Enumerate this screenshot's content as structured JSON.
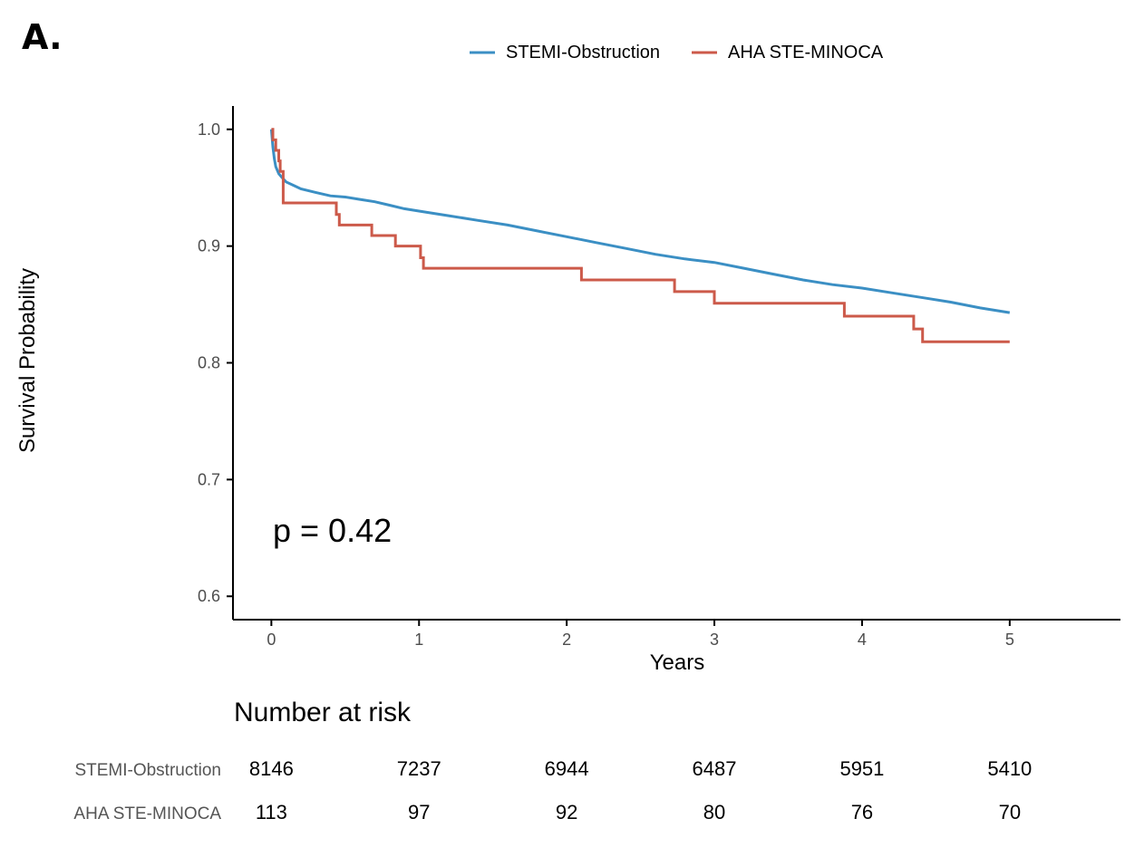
{
  "panel_label": "A.",
  "colors": {
    "series1": "#3b8fc4",
    "series2": "#cc5a4a",
    "axis": "#000000"
  },
  "chart_data": {
    "type": "line",
    "subtype": "kaplan-meier step",
    "xlabel": "Years",
    "ylabel": "Survival Probability",
    "xlim": [
      -0.26,
      5.75
    ],
    "ylim": [
      0.58,
      1.02
    ],
    "x_ticks": [
      0,
      1,
      2,
      3,
      4,
      5
    ],
    "y_ticks": [
      0.6,
      0.7,
      0.8,
      0.9,
      1.0
    ],
    "y_tick_labels": [
      "0.6",
      "0.7",
      "0.8",
      "0.9",
      "1.0"
    ],
    "legend_position": "top",
    "annotation": "p = 0.42",
    "series": [
      {
        "name": "STEMI-Obstruction",
        "x": [
          0,
          0.01,
          0.02,
          0.03,
          0.05,
          0.07,
          0.1,
          0.15,
          0.2,
          0.3,
          0.4,
          0.5,
          0.6,
          0.7,
          0.8,
          0.9,
          1.0,
          1.2,
          1.4,
          1.6,
          1.8,
          2.0,
          2.2,
          2.4,
          2.6,
          2.8,
          3.0,
          3.2,
          3.4,
          3.6,
          3.8,
          4.0,
          4.2,
          4.4,
          4.6,
          4.8,
          5.0
        ],
        "values": [
          1.0,
          0.985,
          0.975,
          0.968,
          0.962,
          0.959,
          0.955,
          0.952,
          0.949,
          0.946,
          0.943,
          0.942,
          0.94,
          0.938,
          0.935,
          0.932,
          0.93,
          0.926,
          0.922,
          0.918,
          0.913,
          0.908,
          0.903,
          0.898,
          0.893,
          0.889,
          0.886,
          0.881,
          0.876,
          0.871,
          0.867,
          0.864,
          0.86,
          0.856,
          0.852,
          0.847,
          0.843
        ]
      },
      {
        "name": "AHA STE-MINOCA",
        "x": [
          0,
          0.01,
          0.03,
          0.05,
          0.06,
          0.08,
          0.44,
          0.46,
          0.68,
          0.84,
          1.01,
          1.03,
          2.1,
          2.73,
          3.0,
          3.88,
          4.35,
          4.41,
          5.0
        ],
        "values": [
          1.0,
          0.991,
          0.982,
          0.973,
          0.964,
          0.937,
          0.927,
          0.918,
          0.909,
          0.9,
          0.89,
          0.881,
          0.871,
          0.861,
          0.851,
          0.84,
          0.829,
          0.818,
          0.818
        ]
      }
    ]
  },
  "risk_table": {
    "title": "Number at risk",
    "times": [
      0,
      1,
      2,
      3,
      4,
      5
    ],
    "rows": [
      {
        "label": "STEMI-Obstruction",
        "values": [
          "8146",
          "7237",
          "6944",
          "6487",
          "5951",
          "5410"
        ]
      },
      {
        "label": "AHA STE-MINOCA",
        "values": [
          "113",
          "97",
          "92",
          "80",
          "76",
          "70"
        ]
      }
    ]
  }
}
